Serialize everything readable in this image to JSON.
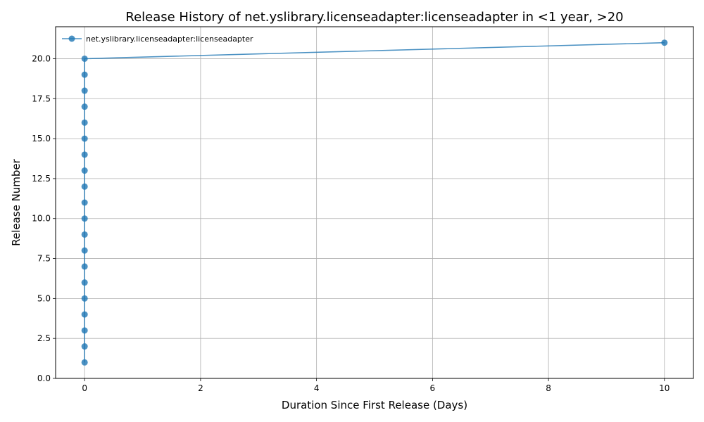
{
  "chart_data": {
    "type": "line",
    "title": "Release History of net.yslibrary.licenseadapter:licenseadapter in <1 year, >20",
    "xlabel": "Duration Since First Release (Days)",
    "ylabel": "Release Number",
    "xlim": [
      -0.5,
      10.5
    ],
    "ylim": [
      0,
      22
    ],
    "xticks": [
      0,
      2,
      4,
      6,
      8,
      10
    ],
    "xtick_labels": [
      "0",
      "2",
      "4",
      "6",
      "8",
      "10"
    ],
    "yticks": [
      0,
      2.5,
      5,
      7.5,
      10,
      12.5,
      15,
      17.5,
      20
    ],
    "ytick_labels": [
      "0.0",
      "2.5",
      "5.0",
      "7.5",
      "10.0",
      "12.5",
      "15.0",
      "17.5",
      "20.0"
    ],
    "grid": true,
    "legend_position": "top-left",
    "series": [
      {
        "name": "net.yslibrary.licenseadapter:licenseadapter",
        "color": "#1f77b4",
        "marker": "circle",
        "x": [
          0,
          0,
          0,
          0,
          0,
          0,
          0,
          0,
          0,
          0,
          0,
          0,
          0,
          0,
          0,
          0,
          0,
          0,
          0,
          0,
          10
        ],
        "y": [
          1,
          2,
          3,
          4,
          5,
          6,
          7,
          8,
          9,
          10,
          11,
          12,
          13,
          14,
          15,
          16,
          17,
          18,
          19,
          20,
          21
        ]
      }
    ]
  }
}
